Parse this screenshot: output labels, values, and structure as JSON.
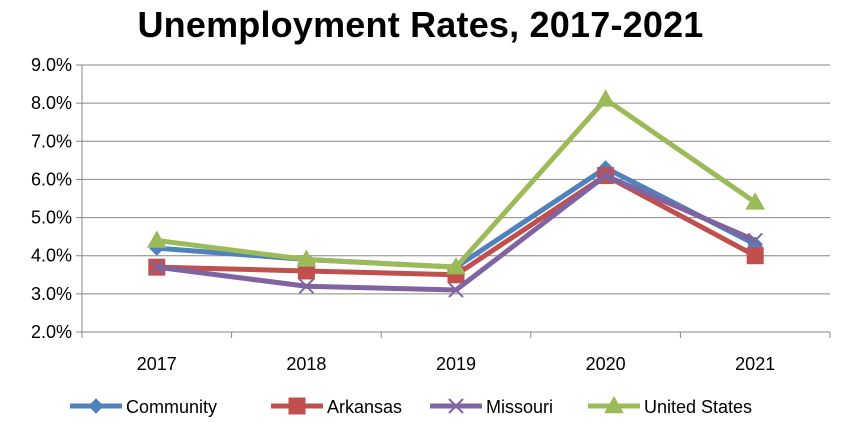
{
  "chart_data": {
    "type": "line",
    "title": "Unemployment Rates, 2017-2021",
    "xlabel": "",
    "ylabel": "",
    "categories": [
      "2017",
      "2018",
      "2019",
      "2020",
      "2021"
    ],
    "ylim": [
      2.0,
      9.0
    ],
    "y_ticks": [
      "2.0%",
      "3.0%",
      "4.0%",
      "5.0%",
      "6.0%",
      "7.0%",
      "8.0%",
      "9.0%"
    ],
    "grid": "horizontal",
    "legend_position": "bottom",
    "series": [
      {
        "name": "Community",
        "values": [
          4.2,
          3.9,
          3.7,
          6.3,
          4.3
        ],
        "color": "#4f81bd",
        "marker": "diamond"
      },
      {
        "name": "Arkansas",
        "values": [
          3.7,
          3.6,
          3.5,
          6.1,
          4.0
        ],
        "color": "#c0504d",
        "marker": "square"
      },
      {
        "name": "Missouri",
        "values": [
          3.7,
          3.2,
          3.1,
          6.1,
          4.4
        ],
        "color": "#8064a2",
        "marker": "x"
      },
      {
        "name": "United States",
        "values": [
          4.4,
          3.9,
          3.7,
          8.1,
          5.4
        ],
        "color": "#9bbb59",
        "marker": "triangle"
      }
    ]
  }
}
